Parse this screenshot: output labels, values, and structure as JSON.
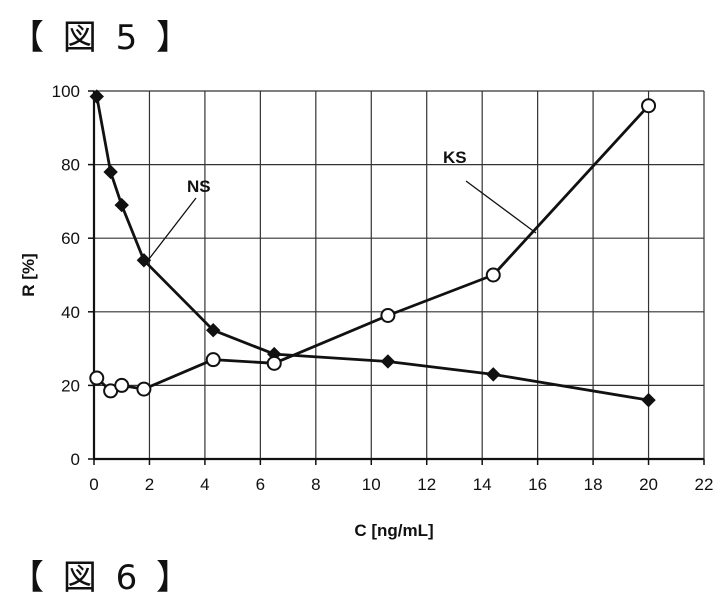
{
  "figure_5_heading": "【 図 5 】",
  "figure_6_heading": "【 図 6 】",
  "chart_data": {
    "type": "line",
    "title": "",
    "xlabel": "C [ng/mL]",
    "ylabel": "R [%]",
    "xlim": [
      0,
      22
    ],
    "ylim": [
      0,
      100
    ],
    "xticks": [
      0,
      2,
      4,
      6,
      8,
      10,
      12,
      14,
      16,
      18,
      20,
      22
    ],
    "yticks": [
      0,
      20,
      40,
      60,
      80,
      100
    ],
    "grid": true,
    "series": [
      {
        "name": "NS",
        "marker": "diamond-filled",
        "color": "#111111",
        "x": [
          0.1,
          0.6,
          1.0,
          1.8,
          4.3,
          6.5,
          10.6,
          14.4,
          20.0
        ],
        "y": [
          98.5,
          78,
          69,
          54,
          35,
          28.5,
          26.5,
          23,
          16
        ]
      },
      {
        "name": "KS",
        "marker": "circle-open",
        "color": "#111111",
        "x": [
          0.1,
          0.6,
          1.0,
          1.8,
          4.3,
          6.5,
          10.6,
          14.4,
          20.0
        ],
        "y": [
          22,
          18.5,
          20,
          19,
          27,
          26,
          39,
          50,
          96
        ]
      }
    ]
  }
}
